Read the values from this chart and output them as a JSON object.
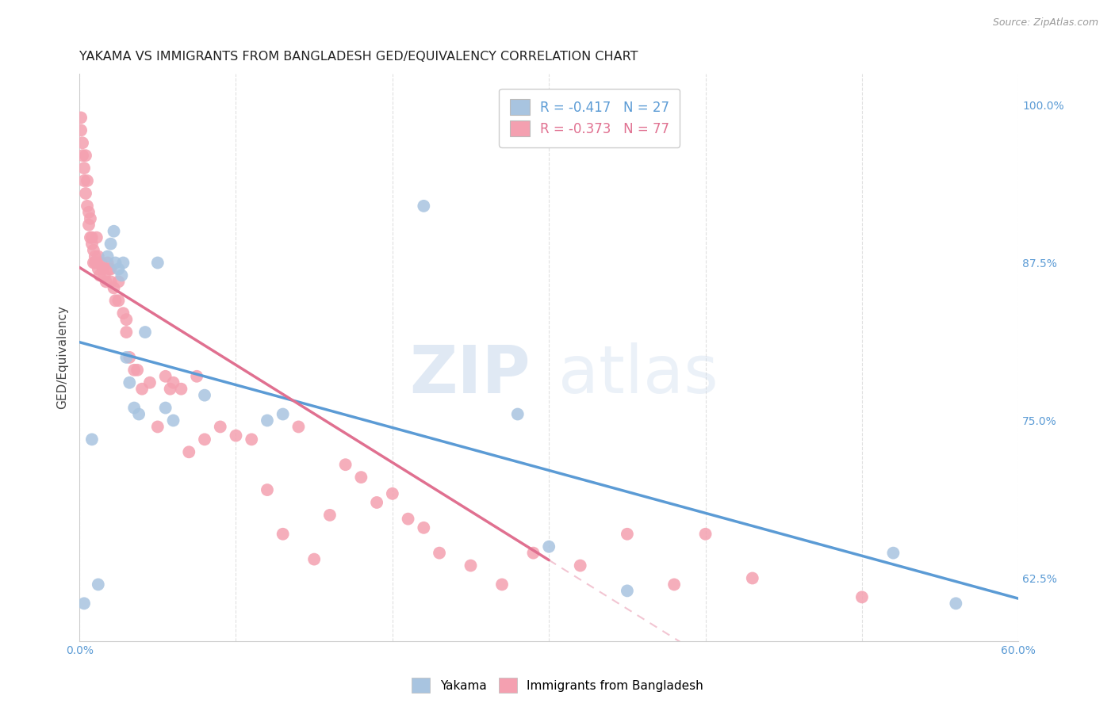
{
  "title": "YAKAMA VS IMMIGRANTS FROM BANGLADESH GED/EQUIVALENCY CORRELATION CHART",
  "source": "Source: ZipAtlas.com",
  "ylabel": "GED/Equivalency",
  "ylabel_right_labels": [
    "100.0%",
    "87.5%",
    "75.0%",
    "62.5%"
  ],
  "ylabel_right_values": [
    1.0,
    0.875,
    0.75,
    0.625
  ],
  "xmin": 0.0,
  "xmax": 0.6,
  "ymin": 0.575,
  "ymax": 1.025,
  "legend_blue_label": "R = -0.417   N = 27",
  "legend_pink_label": "R = -0.373   N = 77",
  "legend_label_yakama": "Yakama",
  "legend_label_immigrants": "Immigrants from Bangladesh",
  "blue_color": "#a8c4e0",
  "pink_color": "#f4a0b0",
  "blue_line_color": "#5b9bd5",
  "pink_line_color": "#e07090",
  "watermark_zip": "ZIP",
  "watermark_atlas": "atlas",
  "background_color": "#ffffff",
  "grid_color": "#dddddd",
  "blue_scatter_x": [
    0.003,
    0.008,
    0.012,
    0.018,
    0.02,
    0.022,
    0.023,
    0.025,
    0.027,
    0.028,
    0.03,
    0.032,
    0.035,
    0.038,
    0.042,
    0.05,
    0.055,
    0.06,
    0.08,
    0.12,
    0.13,
    0.22,
    0.28,
    0.3,
    0.35,
    0.52,
    0.56
  ],
  "blue_scatter_y": [
    0.605,
    0.735,
    0.62,
    0.88,
    0.89,
    0.9,
    0.875,
    0.87,
    0.865,
    0.875,
    0.8,
    0.78,
    0.76,
    0.755,
    0.82,
    0.875,
    0.76,
    0.75,
    0.77,
    0.75,
    0.755,
    0.92,
    0.755,
    0.65,
    0.615,
    0.645,
    0.605
  ],
  "pink_scatter_x": [
    0.001,
    0.001,
    0.002,
    0.002,
    0.003,
    0.003,
    0.004,
    0.004,
    0.005,
    0.005,
    0.006,
    0.006,
    0.007,
    0.007,
    0.008,
    0.008,
    0.009,
    0.009,
    0.01,
    0.01,
    0.011,
    0.011,
    0.012,
    0.012,
    0.013,
    0.014,
    0.015,
    0.016,
    0.017,
    0.018,
    0.019,
    0.02,
    0.02,
    0.022,
    0.023,
    0.025,
    0.025,
    0.028,
    0.03,
    0.03,
    0.032,
    0.035,
    0.037,
    0.04,
    0.045,
    0.05,
    0.055,
    0.058,
    0.06,
    0.065,
    0.07,
    0.075,
    0.08,
    0.09,
    0.1,
    0.11,
    0.12,
    0.13,
    0.14,
    0.15,
    0.16,
    0.17,
    0.18,
    0.19,
    0.2,
    0.21,
    0.22,
    0.23,
    0.25,
    0.27,
    0.29,
    0.32,
    0.35,
    0.38,
    0.4,
    0.43,
    0.5
  ],
  "pink_scatter_y": [
    0.99,
    0.98,
    0.97,
    0.96,
    0.95,
    0.94,
    0.96,
    0.93,
    0.94,
    0.92,
    0.915,
    0.905,
    0.91,
    0.895,
    0.89,
    0.895,
    0.885,
    0.875,
    0.88,
    0.875,
    0.895,
    0.875,
    0.88,
    0.87,
    0.865,
    0.875,
    0.87,
    0.865,
    0.86,
    0.875,
    0.87,
    0.86,
    0.87,
    0.855,
    0.845,
    0.86,
    0.845,
    0.835,
    0.83,
    0.82,
    0.8,
    0.79,
    0.79,
    0.775,
    0.78,
    0.745,
    0.785,
    0.775,
    0.78,
    0.775,
    0.725,
    0.785,
    0.735,
    0.745,
    0.738,
    0.735,
    0.695,
    0.66,
    0.745,
    0.64,
    0.675,
    0.715,
    0.705,
    0.685,
    0.692,
    0.672,
    0.665,
    0.645,
    0.635,
    0.62,
    0.645,
    0.635,
    0.66,
    0.62,
    0.66,
    0.625,
    0.61
  ],
  "pink_line_xstart": 0.0,
  "pink_line_xend": 0.3,
  "blue_line_xstart": 0.0,
  "blue_line_xend": 0.6
}
